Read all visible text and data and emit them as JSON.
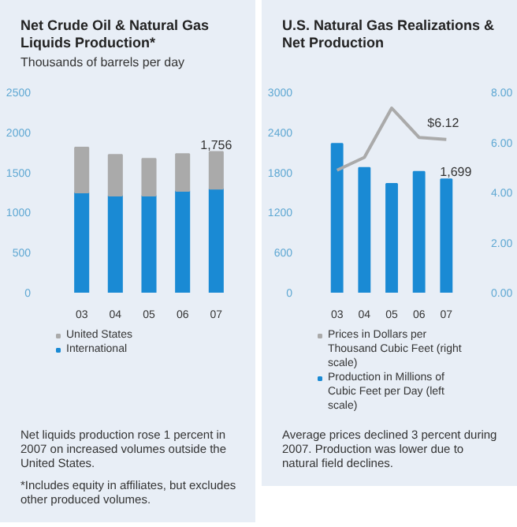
{
  "chart_data": [
    {
      "type": "bar",
      "title": "Net Crude Oil & Natural Gas Liquids Production*",
      "subtitle": "Thousands of barrels per day",
      "categories": [
        "03",
        "04",
        "05",
        "06",
        "07"
      ],
      "stacked": true,
      "ylim": [
        0,
        2500
      ],
      "yticks": [
        0,
        500,
        1000,
        1500,
        2000,
        2500
      ],
      "grid": false,
      "legend": "bottom",
      "series": [
        {
          "name": "International",
          "color": "#1a8ad4",
          "values": [
            1250,
            1210,
            1210,
            1270,
            1296
          ]
        },
        {
          "name": "United States",
          "color": "#aaaaaa",
          "values": [
            560,
            510,
            460,
            460,
            460
          ]
        }
      ],
      "totals": [
        null,
        null,
        null,
        null,
        "1,756"
      ],
      "annotations": [
        "Net liquids production rose 1 percent in 2007 on increased volumes outside the United States.",
        "*Includes equity in affiliates, but excludes other produced volumes."
      ]
    },
    {
      "type": "bar",
      "title": "U.S. Natural Gas Realizations & Net Production",
      "categories": [
        "03",
        "04",
        "05",
        "06",
        "07"
      ],
      "ylim": [
        0,
        3000
      ],
      "yticks": [
        0,
        600,
        1200,
        1800,
        2400,
        3000
      ],
      "y2lim": [
        0,
        8
      ],
      "y2ticks": [
        {
          "value": 0,
          "label": "0.00"
        },
        {
          "value": 2,
          "label": "2.00"
        },
        {
          "value": 4,
          "label": "4.00"
        },
        {
          "value": 6,
          "label": "6.00"
        },
        {
          "value": 8,
          "label": "8.00"
        }
      ],
      "grid": false,
      "legend": "bottom",
      "series": [
        {
          "name": "Production in Millions of Cubic Feet per Day (left scale)",
          "type": "bar",
          "axis": "y",
          "color": "#1a8ad4",
          "values": [
            2230,
            1870,
            1630,
            1810,
            1699
          ],
          "value_labels": [
            null,
            null,
            null,
            null,
            "1,699"
          ]
        },
        {
          "name": "Prices in Dollars per Thousand Cubic Feet (right scale)",
          "type": "line",
          "axis": "y2",
          "color": "#aaaaaa",
          "values": [
            4.89,
            5.4,
            7.37,
            6.2,
            6.12
          ],
          "value_labels": [
            null,
            null,
            null,
            null,
            "$6.12"
          ]
        }
      ],
      "annotations": [
        "Average prices declined 3 percent during 2007. Production was lower due to natural field declines."
      ]
    }
  ]
}
